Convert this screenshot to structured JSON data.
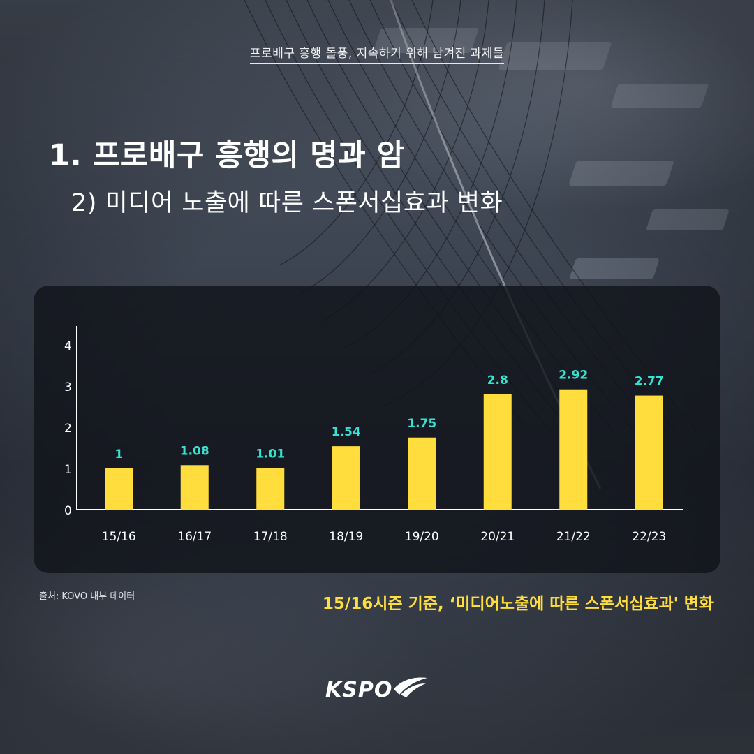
{
  "header": {
    "top_subtitle": "프로배구 흥행 돌풍, 지속하기 위해 남겨진 과제들",
    "main_title": "1. 프로배구 흥행의 명과 암",
    "section_title": "2) 미디어 노출에 따른 스폰서십효과 변화"
  },
  "chart_data": {
    "type": "bar",
    "title": "",
    "xlabel": "",
    "ylabel": "",
    "categories": [
      "15/16",
      "16/17",
      "17/18",
      "18/19",
      "19/20",
      "20/21",
      "21/22",
      "22/23"
    ],
    "values": [
      1,
      1.08,
      1.01,
      1.54,
      1.75,
      2.8,
      2.92,
      2.77
    ],
    "data_labels": [
      "1",
      "1.08",
      "1.01",
      "1.54",
      "1.75",
      "2.8",
      "2.92",
      "2.77"
    ],
    "y_ticks": [
      0,
      1,
      2,
      3,
      4
    ],
    "y_tick_labels": [
      "0",
      "1",
      "2",
      "3",
      "4"
    ],
    "ylim": [
      0,
      4.4
    ],
    "bar_color": "#fedd3d",
    "label_color": "#34e4d2",
    "axis_color": "#ffffff",
    "grid": false,
    "legend": "none"
  },
  "footer": {
    "source": "출처: KOVO 내부 데이터",
    "caption": "15/16시즌 기준, ‘미디어노출에 따른 스폰서십효과' 변화"
  },
  "logo": {
    "text": "KSPO"
  },
  "colors": {
    "accent_yellow": "#fedd3d",
    "accent_teal": "#34e4d2",
    "panel": "#101319"
  }
}
